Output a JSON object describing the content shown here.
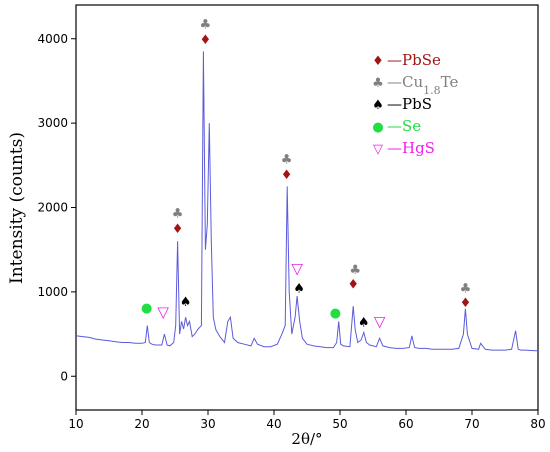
{
  "chart_data": {
    "type": "line",
    "xlabel": "2θ/°",
    "ylabel": "Intensity (counts)",
    "xlim": [
      10,
      80
    ],
    "ylim": [
      -400,
      4400
    ],
    "xticks": [
      10,
      20,
      30,
      40,
      50,
      60,
      70,
      80
    ],
    "yticks": [
      0,
      1000,
      2000,
      3000,
      4000
    ],
    "grid": false,
    "series": [
      {
        "color": "#5b5bdc",
        "x": [
          10,
          11,
          12,
          13,
          14,
          15,
          16,
          17,
          18,
          19,
          20,
          20.5,
          20.8,
          21.1,
          21.5,
          22,
          23,
          23.4,
          23.8,
          24.2,
          24.8,
          25.1,
          25.4,
          25.7,
          26.0,
          26.3,
          26.6,
          26.9,
          27.2,
          27.6,
          28,
          28.5,
          29.0,
          29.3,
          29.6,
          29.9,
          30.2,
          30.5,
          30.8,
          31.2,
          31.8,
          32.5,
          33,
          33.4,
          33.8,
          34.5,
          35.5,
          36.5,
          37,
          37.5,
          38.5,
          39.5,
          40.5,
          41.2,
          41.7,
          42.0,
          42.3,
          42.7,
          43.2,
          43.5,
          43.9,
          44.3,
          45,
          46,
          47,
          48,
          49,
          49.5,
          49.8,
          50.1,
          50.5,
          51.5,
          52.0,
          52.3,
          52.7,
          53.2,
          53.6,
          54.0,
          54.5,
          55.5,
          56,
          56.5,
          57.5,
          58.5,
          59.5,
          60.5,
          60.9,
          61.3,
          62,
          63,
          64,
          65,
          66,
          67,
          68,
          68.7,
          69.0,
          69.3,
          70,
          71,
          71.3,
          72,
          73,
          74,
          75,
          76,
          76.6,
          77.0,
          77.4,
          78,
          79,
          80
        ],
        "y": [
          480,
          470,
          460,
          440,
          430,
          420,
          410,
          400,
          400,
          390,
          390,
          400,
          600,
          400,
          380,
          370,
          370,
          500,
          370,
          360,
          400,
          600,
          1600,
          500,
          650,
          560,
          700,
          600,
          650,
          470,
          500,
          560,
          600,
          3850,
          1500,
          1800,
          3000,
          1600,
          700,
          550,
          470,
          400,
          650,
          700,
          450,
          400,
          380,
          360,
          450,
          380,
          350,
          350,
          380,
          500,
          600,
          2250,
          1000,
          500,
          700,
          950,
          650,
          450,
          380,
          360,
          350,
          340,
          340,
          400,
          650,
          380,
          360,
          350,
          830,
          550,
          400,
          430,
          520,
          400,
          370,
          350,
          450,
          360,
          340,
          330,
          330,
          340,
          480,
          340,
          330,
          330,
          320,
          320,
          320,
          320,
          330,
          500,
          800,
          500,
          330,
          320,
          390,
          320,
          310,
          310,
          310,
          320,
          540,
          320,
          310,
          310,
          305,
          300
        ]
      }
    ],
    "legend": {
      "placement": "top-right",
      "entries": [
        {
          "symbol": "♦",
          "label": "—PbSe",
          "color": "#a01515"
        },
        {
          "symbol": "♣",
          "label": "—Cu",
          "subscript": "1.8",
          "suffix": "Te",
          "color": "#808080"
        },
        {
          "symbol": "♠",
          "label": "—PbS",
          "color": "#000000"
        },
        {
          "symbol": "●",
          "label": "—Se",
          "color": "#22dd44"
        },
        {
          "symbol": "▽",
          "label": "—HgS",
          "color": "#ee22ee"
        }
      ]
    },
    "markers": [
      {
        "symbol": "♦",
        "color": "#a01515",
        "x": 25.4,
        "y": 1760
      },
      {
        "symbol": "♣",
        "color": "#808080",
        "x": 25.4,
        "y": 1940
      },
      {
        "symbol": "♦",
        "color": "#a01515",
        "x": 29.6,
        "y": 4000
      },
      {
        "symbol": "♣",
        "color": "#808080",
        "x": 29.6,
        "y": 4180
      },
      {
        "symbol": "♦",
        "color": "#a01515",
        "x": 41.9,
        "y": 2400
      },
      {
        "symbol": "♣",
        "color": "#808080",
        "x": 41.9,
        "y": 2580
      },
      {
        "symbol": "♦",
        "color": "#a01515",
        "x": 52.0,
        "y": 1100
      },
      {
        "symbol": "♣",
        "color": "#808080",
        "x": 52.3,
        "y": 1270
      },
      {
        "symbol": "♦",
        "color": "#a01515",
        "x": 69.0,
        "y": 880
      },
      {
        "symbol": "♣",
        "color": "#808080",
        "x": 69.0,
        "y": 1050
      },
      {
        "symbol": "♠",
        "color": "#000000",
        "x": 26.6,
        "y": 890
      },
      {
        "symbol": "♠",
        "color": "#000000",
        "x": 43.8,
        "y": 1050
      },
      {
        "symbol": "♠",
        "color": "#000000",
        "x": 53.6,
        "y": 650
      },
      {
        "symbol": "●",
        "color": "#22dd44",
        "x": 20.7,
        "y": 820
      },
      {
        "symbol": "●",
        "color": "#22dd44",
        "x": 49.3,
        "y": 760
      },
      {
        "symbol": "▽",
        "color": "#ee22ee",
        "x": 23.2,
        "y": 760
      },
      {
        "symbol": "▽",
        "color": "#ee22ee",
        "x": 43.5,
        "y": 1280
      },
      {
        "symbol": "▽",
        "color": "#ee22ee",
        "x": 56.0,
        "y": 650
      }
    ]
  }
}
